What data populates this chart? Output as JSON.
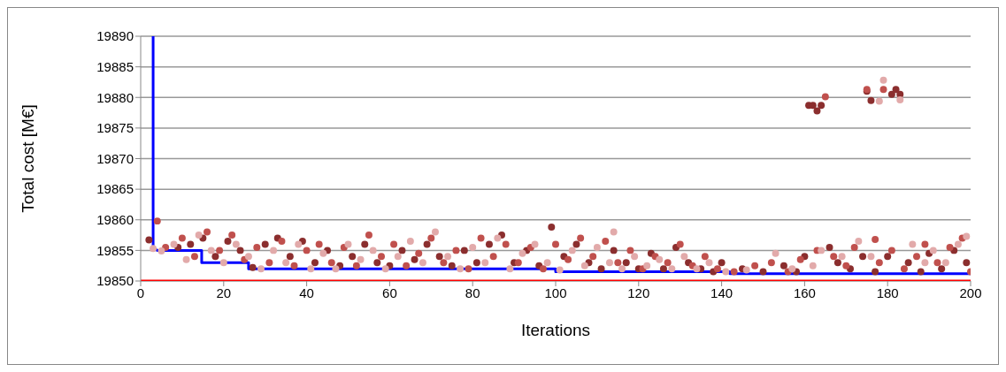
{
  "chart_data": {
    "type": "scatter",
    "xlabel": "Iterations",
    "ylabel": "Total cost [M€]",
    "xlim": [
      0,
      200
    ],
    "xticks": [
      0,
      20,
      40,
      60,
      80,
      100,
      120,
      140,
      160,
      180,
      200
    ],
    "ylim": [
      19850,
      19890
    ],
    "yticks": [
      19850,
      19855,
      19860,
      19865,
      19870,
      19875,
      19880,
      19885,
      19890
    ],
    "grid": "y",
    "marker": "circle",
    "series": [
      {
        "type": "line",
        "color": "#ff0000",
        "marker": "none",
        "x": [
          0,
          200
        ],
        "values": [
          19850,
          19850
        ]
      },
      {
        "type": "line",
        "color": "#0000ff",
        "marker": "none",
        "x": [
          3,
          3,
          4,
          14.7,
          14.7,
          26,
          26,
          100,
          100,
          142,
          142,
          200
        ],
        "values": [
          19890,
          19855.5,
          19855,
          19855,
          19853,
          19853,
          19852,
          19852,
          19851.5,
          19851.5,
          19851.2,
          19851.2
        ]
      },
      {
        "color": "#8b2e2e",
        "x": [
          2,
          9,
          12,
          15,
          18,
          21,
          24,
          27,
          30,
          33,
          36,
          39,
          42,
          45,
          48,
          51,
          54,
          57,
          60,
          63,
          66,
          69,
          72,
          75,
          78,
          81,
          84,
          87,
          90,
          93,
          96,
          99,
          102,
          105,
          108,
          111,
          114,
          117,
          120,
          123,
          126,
          129,
          132,
          135,
          138,
          140,
          145,
          150,
          155,
          158,
          160,
          161,
          162,
          163,
          164,
          166,
          168,
          171,
          174,
          175,
          176,
          177,
          180,
          181,
          182,
          183,
          185,
          188,
          190,
          193,
          196,
          199
        ],
        "values": [
          19856.7,
          19855.5,
          19856,
          19857,
          19854,
          19856.5,
          19855,
          19852.2,
          19856,
          19857,
          19854,
          19856.5,
          19853,
          19855,
          19852.5,
          19854,
          19856,
          19853,
          19852.5,
          19855,
          19853.5,
          19856,
          19854,
          19852.5,
          19855,
          19853,
          19856,
          19857.5,
          19853,
          19855,
          19852.5,
          19858.8,
          19854,
          19856,
          19853,
          19852,
          19855,
          19853,
          19852,
          19854.5,
          19852,
          19855.5,
          19853,
          19852,
          19851.5,
          19853,
          19852,
          19851.5,
          19852.5,
          19851.5,
          19854,
          19878.7,
          19878.7,
          19877.8,
          19878.7,
          19855.5,
          19853,
          19852,
          19854,
          19881,
          19879.5,
          19851.5,
          19854,
          19880.5,
          19881.3,
          19880.5,
          19853,
          19851.5,
          19854.5,
          19852,
          19855,
          19853
        ]
      },
      {
        "color": "#c0504d",
        "x": [
          4,
          6,
          10,
          13,
          16,
          19,
          22,
          25,
          28,
          31,
          34,
          37,
          40,
          43,
          46,
          49,
          52,
          55,
          58,
          61,
          64,
          67,
          70,
          73,
          76,
          79,
          82,
          85,
          88,
          91,
          94,
          97,
          100,
          103,
          106,
          109,
          112,
          115,
          118,
          121,
          124,
          127,
          130,
          133,
          136,
          139,
          143,
          148,
          152,
          156,
          159,
          163,
          165,
          167,
          170,
          172,
          175,
          177,
          178,
          179,
          181,
          184,
          187,
          189,
          192,
          195,
          198,
          200
        ],
        "values": [
          19859.8,
          19855.5,
          19857,
          19854,
          19858,
          19855,
          19857.5,
          19853.5,
          19855.5,
          19853,
          19856.5,
          19852.5,
          19855,
          19856,
          19853,
          19855.5,
          19852.5,
          19857.5,
          19854,
          19856,
          19852.5,
          19854.5,
          19857,
          19853,
          19855,
          19852,
          19857,
          19854,
          19856,
          19853,
          19855.5,
          19852,
          19856,
          19853.5,
          19857,
          19854,
          19856.5,
          19853,
          19855,
          19852,
          19854,
          19853,
          19856,
          19852.5,
          19854,
          19852,
          19851.5,
          19852.5,
          19853,
          19851.5,
          19853.5,
          19855,
          19880.1,
          19854,
          19852.5,
          19855.5,
          19881.3,
          19856.8,
          19853,
          19881.3,
          19855,
          19852,
          19854,
          19856,
          19853,
          19855.5,
          19857,
          19851.5
        ]
      },
      {
        "color": "#e2aaaa",
        "x": [
          3,
          5,
          8,
          11,
          14,
          17,
          20,
          23,
          26,
          29,
          32,
          35,
          38,
          41,
          44,
          47,
          50,
          53,
          56,
          59,
          62,
          65,
          68,
          71,
          74,
          77,
          80,
          83,
          86,
          89,
          92,
          95,
          98,
          101,
          104,
          107,
          110,
          113,
          114,
          116,
          119,
          122,
          125,
          128,
          131,
          134,
          137,
          141,
          146,
          153,
          157,
          162,
          164,
          169,
          173,
          176,
          178,
          179,
          183,
          186,
          189,
          191,
          194,
          197,
          199
        ],
        "values": [
          19855.3,
          19854.9,
          19856,
          19853.5,
          19857.5,
          19855,
          19853,
          19856,
          19854,
          19852,
          19855,
          19853,
          19856,
          19852,
          19854.5,
          19852,
          19856,
          19853.5,
          19855,
          19852,
          19854,
          19856.5,
          19853,
          19858,
          19854,
          19852,
          19855.5,
          19853,
          19857,
          19852,
          19854.5,
          19856,
          19853,
          19851.8,
          19855,
          19852.5,
          19855.5,
          19853,
          19858,
          19852,
          19854,
          19852.5,
          19853.5,
          19852,
          19854,
          19852,
          19853,
          19851.5,
          19851.8,
          19854.5,
          19852,
          19852.5,
          19855,
          19854,
          19856.5,
          19854,
          19879.4,
          19882.8,
          19879.6,
          19856,
          19853,
          19855,
          19853,
          19856,
          19857.3
        ]
      }
    ]
  }
}
